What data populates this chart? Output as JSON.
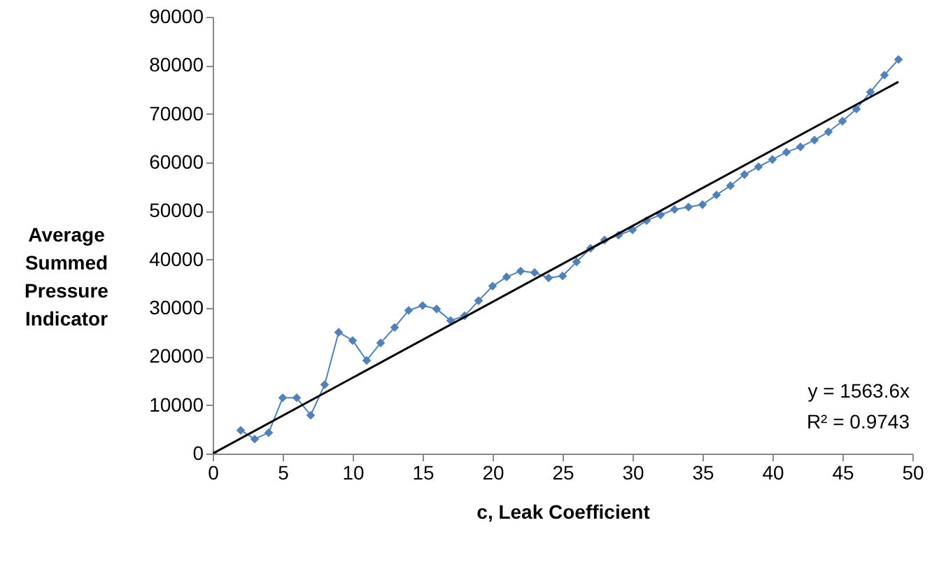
{
  "chart_data": {
    "type": "line",
    "xlabel": "c, Leak Coefficient",
    "ylabel": "Average Summed Pressure Indicator",
    "xlim": [
      0,
      50
    ],
    "xticks": [
      0,
      5,
      10,
      15,
      20,
      25,
      30,
      35,
      40,
      45,
      50
    ],
    "ylim": [
      0,
      90000
    ],
    "yticks": [
      0,
      10000,
      20000,
      30000,
      40000,
      50000,
      60000,
      70000,
      80000,
      90000
    ],
    "grid": false,
    "marker": "diamond",
    "annotations": [
      "y = 1563.6x",
      "R² = 0.9743"
    ],
    "series": [
      {
        "color": "#4f81bd",
        "x": [
          0,
          1,
          2,
          3,
          4,
          5,
          6,
          7,
          8,
          9,
          10,
          11,
          12,
          13,
          14,
          15,
          16,
          17,
          18,
          19,
          20,
          21,
          22,
          23,
          24,
          25,
          26,
          27,
          28,
          29,
          30,
          31,
          32,
          33,
          34,
          35,
          36,
          37,
          38,
          39,
          40,
          41,
          42,
          43,
          44,
          45,
          46,
          47,
          48,
          49
        ],
        "values": [
          0,
          null,
          4800,
          3000,
          4300,
          11500,
          11500,
          7900,
          14200,
          25000,
          23300,
          19200,
          22800,
          26000,
          29500,
          30500,
          29800,
          27400,
          28400,
          31500,
          34500,
          36400,
          37600,
          37300,
          36200,
          36600,
          39500,
          42300,
          44000,
          45000,
          46100,
          48000,
          49200,
          50300,
          50800,
          51300,
          53300,
          55200,
          57500,
          59100,
          60600,
          62100,
          63200,
          64600,
          66300,
          68500,
          71000,
          74500,
          78000,
          81200
        ]
      },
      {
        "type": "line",
        "color": "#000000",
        "marker": "none",
        "x": [
          0,
          49
        ],
        "values": [
          0,
          76600
        ]
      }
    ]
  }
}
